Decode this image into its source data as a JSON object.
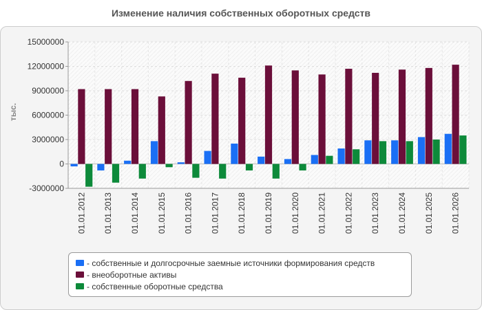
{
  "chart_data": {
    "type": "bar",
    "title": "Изменение наличия собственных оборотных средств",
    "ylabel": "тыс.",
    "xlabel": "",
    "ylim": [
      -3000000,
      15000000
    ],
    "yticks": [
      "15000000",
      "12000000",
      "9000000",
      "6000000",
      "3000000",
      "0",
      "-3000000"
    ],
    "grid": true,
    "legend_position": "bottom",
    "categories": [
      "01.01.2012",
      "01.01.2013",
      "01.01.2014",
      "01.01.2015",
      "01.01.2016",
      "01.01.2017",
      "01.01.2018",
      "01.01.2019",
      "01.01.2020",
      "01.01.2021",
      "01.01.2022",
      "01.01.2023",
      "01.01.2024",
      "01.01.2025",
      "01.01.2026"
    ],
    "series": [
      {
        "name": "- собственные и долгосрочные заемные источники формирования средств",
        "color": "#1a6ff5",
        "values": [
          -300000,
          -800000,
          400000,
          2800000,
          200000,
          1600000,
          2500000,
          900000,
          600000,
          1100000,
          1900000,
          2900000,
          2900000,
          3300000,
          3700000
        ]
      },
      {
        "name": "- внеоборотные активы",
        "color": "#6b0f3a",
        "values": [
          9200000,
          9200000,
          9200000,
          8300000,
          10200000,
          11100000,
          10600000,
          12100000,
          11500000,
          11000000,
          11700000,
          11200000,
          11600000,
          11800000,
          12200000
        ]
      },
      {
        "name": "- собственные оборотные средства",
        "color": "#0d8a3a",
        "values": [
          -2800000,
          -2300000,
          -1800000,
          -400000,
          -1700000,
          -1800000,
          -800000,
          -1800000,
          -800000,
          1000000,
          1800000,
          2800000,
          2800000,
          3000000,
          3500000
        ]
      }
    ]
  }
}
